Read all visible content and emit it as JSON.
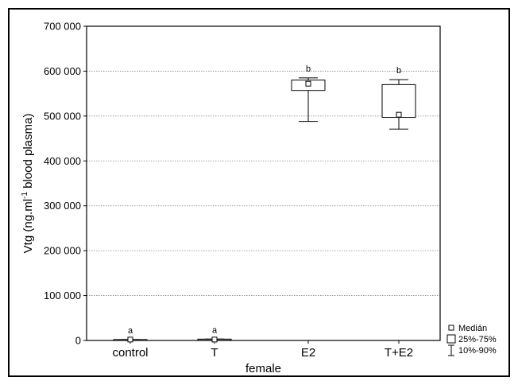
{
  "chart_data": {
    "type": "box",
    "xlabel": "female",
    "ylabel": {
      "prefix": "Vtg (ng.ml",
      "superscript": "-1",
      "suffix": " blood plasma)"
    },
    "ylim": [
      0,
      700000
    ],
    "yticks": [
      0,
      100000,
      200000,
      300000,
      400000,
      500000,
      600000,
      700000
    ],
    "ytick_labels": [
      "0",
      "100 000",
      "200 000",
      "300 000",
      "400 000",
      "500 000",
      "600 000",
      "700 000"
    ],
    "grid": "horizontal dotted",
    "categories": [
      "control",
      "T",
      "E2",
      "T+E2"
    ],
    "series": [
      {
        "category": "control",
        "median": 2000,
        "q1": 0,
        "q3": 2000,
        "p10": 0,
        "p90": 2000,
        "letter": "a"
      },
      {
        "category": "T",
        "median": 2000,
        "q1": 500,
        "q3": 3000,
        "p10": 0,
        "p90": 3000,
        "letter": "a"
      },
      {
        "category": "E2",
        "median": 572000,
        "q1": 557000,
        "q3": 580000,
        "p10": 488000,
        "p90": 585000,
        "letter": "b"
      },
      {
        "category": "T+E2",
        "median": 503000,
        "q1": 497000,
        "q3": 570000,
        "p10": 471000,
        "p90": 581000,
        "letter": "b"
      }
    ],
    "legend": {
      "position": "bottom-right",
      "items": [
        {
          "symbol": "median-square",
          "label": "Medián"
        },
        {
          "symbol": "box",
          "label": "25%-75%"
        },
        {
          "symbol": "whisker",
          "label": "10%-90%"
        }
      ]
    }
  }
}
